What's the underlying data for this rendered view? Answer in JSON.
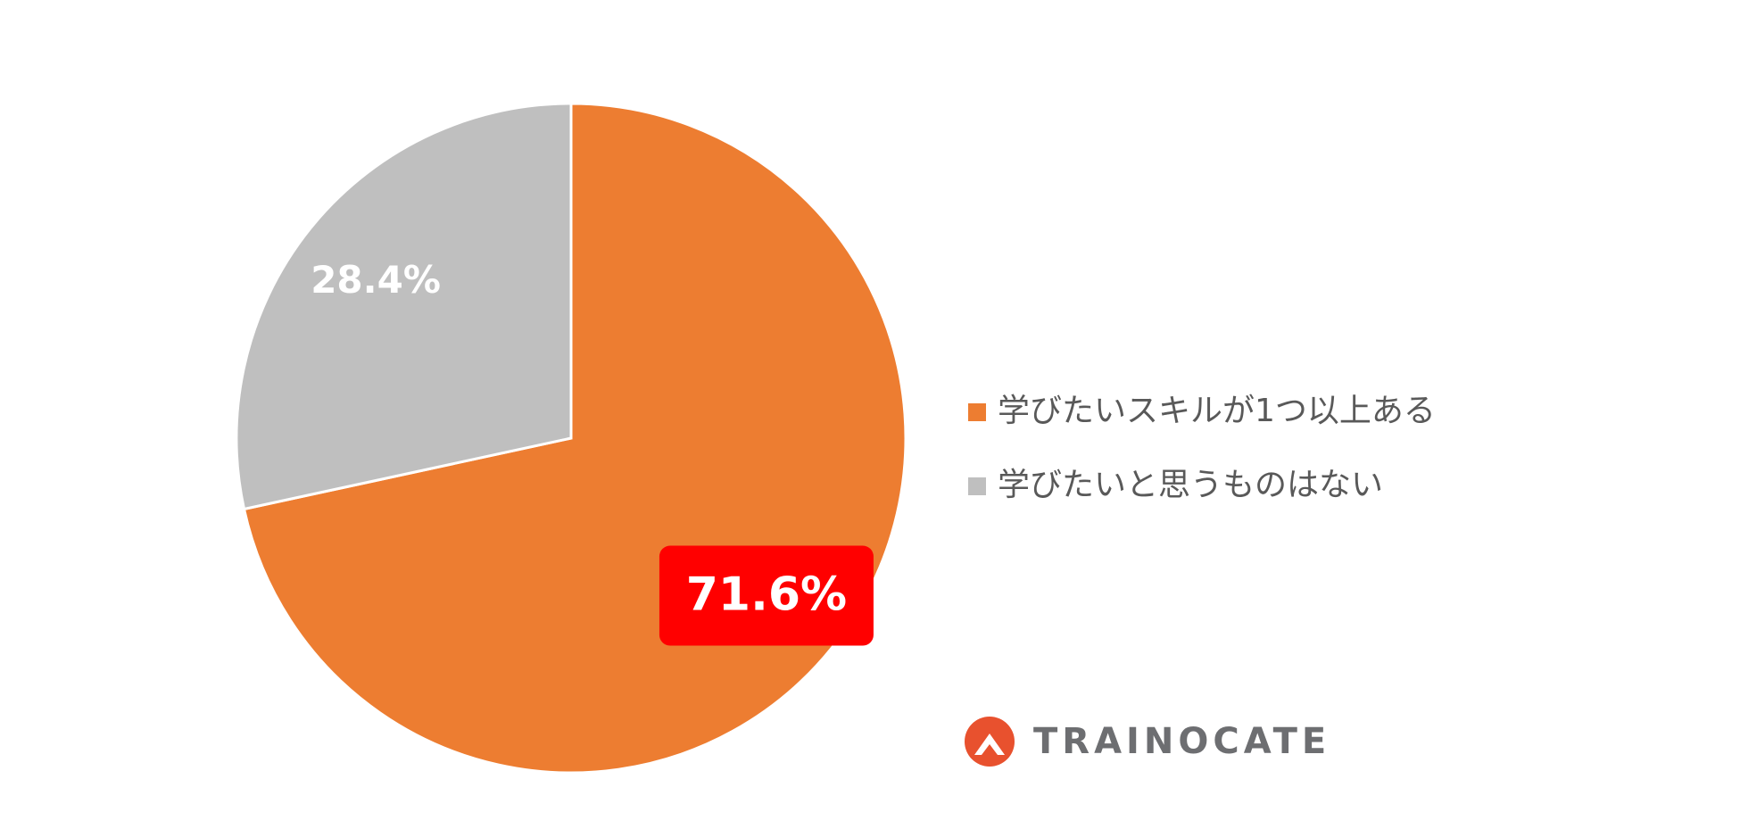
{
  "chart_data": {
    "type": "pie",
    "categories": [
      "学びたいスキルが1つ以上ある",
      "学びたいと思うものはない"
    ],
    "values": [
      71.6,
      28.4
    ],
    "value_labels": [
      "71.6%",
      "28.4%"
    ],
    "colors": [
      "#ED7D31",
      "#BFBFBF"
    ],
    "highlight_label": {
      "index": 0,
      "color": "#FF0000"
    },
    "legend": "right"
  },
  "logo": {
    "text": "TRAINOCATE"
  }
}
